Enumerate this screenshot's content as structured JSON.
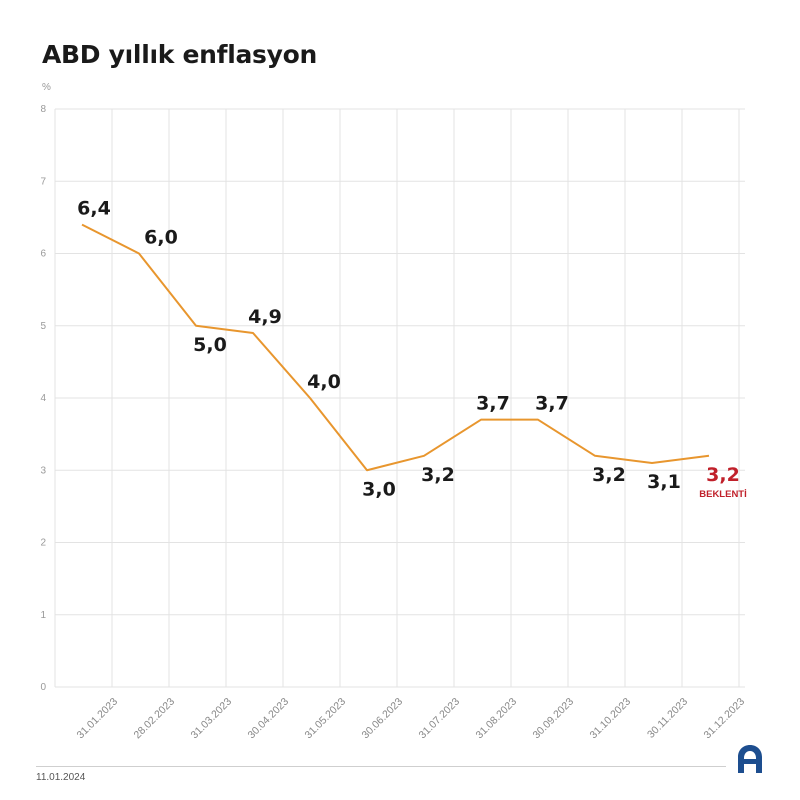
{
  "header": {
    "title": "ABD yıllık enflasyon",
    "unit": "%"
  },
  "footer": {
    "date": "11.01.2024",
    "logo_text": "AA"
  },
  "chart_data": {
    "type": "line",
    "title": "ABD yıllık enflasyon",
    "xlabel": "",
    "ylabel": "%",
    "ylim": [
      0,
      8
    ],
    "yticks": [
      "0",
      "1",
      "2",
      "3",
      "4",
      "5",
      "6",
      "7",
      "8"
    ],
    "grid": true,
    "categories": [
      "31.01.2023",
      "28.02.2023",
      "31.03.2023",
      "30.04.2023",
      "31.05.2023",
      "30.06.2023",
      "31.07.2023",
      "31.08.2023",
      "30.09.2023",
      "31.10.2023",
      "30.11.2023",
      "31.12.2023"
    ],
    "series": [
      {
        "values": [
          6.4,
          6.0,
          5.0,
          4.9,
          4.0,
          3.0,
          3.2,
          3.7,
          3.7,
          3.2,
          3.1,
          3.2
        ],
        "labels": [
          "6,4",
          "6,0",
          "5,0",
          "4,9",
          "4,0",
          "3,0",
          "3,2",
          "3,7",
          "3,7",
          "3,2",
          "3,1",
          "3,2"
        ],
        "color": "#e8962e"
      }
    ],
    "annotations": [
      {
        "index": 11,
        "text": "BEKLENTİ",
        "color": "#c0202a"
      }
    ],
    "label_color": "#1a1a1a"
  }
}
